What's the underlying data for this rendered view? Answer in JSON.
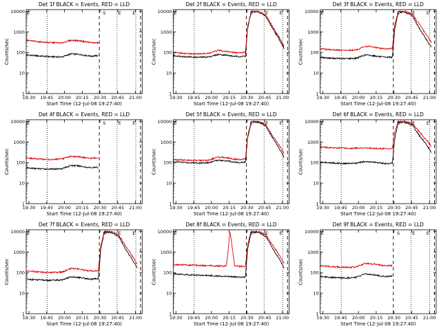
{
  "layout": {
    "rows": 3,
    "cols": 3
  },
  "colors": {
    "events": "#000000",
    "lld": "#dd0000",
    "axes": "#000000",
    "background": "#ffffff"
  },
  "common": {
    "xlabel": "Start Time (12-Jul-08 19:27:40)",
    "ylabel": "Counts/sec",
    "x_tick_labels": [
      "19:30",
      "19:45",
      "20:00",
      "20:15",
      "20:30",
      "20:45",
      "21:00"
    ],
    "x_tick_minutes": [
      2.33,
      17.33,
      32.33,
      47.33,
      62.33,
      77.33,
      92.33
    ],
    "y_tick_labels": [
      "1",
      "10",
      "100",
      "1000",
      "10000"
    ],
    "y_tick_values": [
      1,
      10,
      100,
      1000,
      10000
    ],
    "x_range_minutes": [
      0,
      98
    ],
    "y_range": [
      1,
      12000
    ],
    "y_scale": "log",
    "dotted_lines_minutes": [
      17.8,
      76.8,
      92.6
    ],
    "dashed_lines_minutes": [
      61.8,
      96.6
    ],
    "markers": [
      {
        "label": "E",
        "minute": 1.8
      },
      {
        "label": "S",
        "minute": 66.0
      },
      {
        "label": "E",
        "minute": 79.0
      },
      {
        "label": "E",
        "minute": 91.0
      }
    ]
  },
  "panels": [
    {
      "title": "Det 1f BLACK = Events, RED = LLD"
    },
    {
      "title": "Det 2f BLACK = Events, RED = LLD"
    },
    {
      "title": "Det 3f BLACK = Events, RED = LLD"
    },
    {
      "title": "Det 4f BLACK = Events, RED = LLD"
    },
    {
      "title": "Det 5f BLACK = Events, RED = LLD"
    },
    {
      "title": "Det 6f BLACK = Events, RED = LLD"
    },
    {
      "title": "Det 7f BLACK = Events, RED = LLD"
    },
    {
      "title": "Det 8f BLACK = Events, RED = LLD"
    },
    {
      "title": "Det 9f BLACK = Events, RED = LLD"
    }
  ],
  "chart_data": [
    {
      "type": "line",
      "title": "Det 1f BLACK = Events, RED = LLD",
      "xlabel": "Start Time (12-Jul-08 19:27:40)",
      "ylabel": "Counts/sec",
      "y_scale": "log",
      "ylim": [
        1,
        12000
      ],
      "series": [
        {
          "name": "Events",
          "color": "#000000",
          "x": [
            0,
            10,
            20,
            30,
            38,
            45,
            50,
            55,
            61
          ],
          "y": [
            75,
            68,
            62,
            60,
            85,
            80,
            72,
            66,
            70
          ]
        },
        {
          "name": "LLD",
          "color": "#dd0000",
          "x": [
            0,
            10,
            20,
            30,
            38,
            45,
            50,
            55,
            61
          ],
          "y": [
            390,
            330,
            300,
            290,
            390,
            370,
            330,
            300,
            290
          ]
        }
      ]
    },
    {
      "type": "line",
      "title": "Det 2f BLACK = Events, RED = LLD",
      "xlabel": "Start Time (12-Jul-08 19:27:40)",
      "ylabel": "Counts/sec",
      "y_scale": "log",
      "ylim": [
        1,
        12000
      ],
      "series": [
        {
          "name": "Events",
          "color": "#000000",
          "x": [
            0,
            10,
            20,
            30,
            38,
            45,
            50,
            55,
            61,
            63,
            66,
            72,
            78,
            84,
            90,
            94
          ],
          "y": [
            70,
            62,
            58,
            60,
            80,
            74,
            66,
            63,
            65,
            1500,
            9500,
            9200,
            6000,
            1500,
            400,
            150
          ]
        },
        {
          "name": "LLD",
          "color": "#dd0000",
          "x": [
            0,
            10,
            20,
            30,
            38,
            45,
            50,
            55,
            61,
            63,
            66,
            72,
            78,
            84,
            90,
            94
          ],
          "y": [
            100,
            88,
            85,
            90,
            125,
            115,
            100,
            96,
            100,
            2000,
            10000,
            9800,
            7000,
            1800,
            500,
            180
          ]
        }
      ]
    },
    {
      "type": "line",
      "title": "Det 3f BLACK = Events, RED = LLD",
      "xlabel": "Start Time (12-Jul-08 19:27:40)",
      "ylabel": "Counts/sec",
      "y_scale": "log",
      "ylim": [
        1,
        12000
      ],
      "series": [
        {
          "name": "Events",
          "color": "#000000",
          "x": [
            0,
            10,
            20,
            30,
            38,
            45,
            50,
            55,
            61,
            63,
            66,
            72,
            78,
            84,
            90,
            94
          ],
          "y": [
            58,
            52,
            50,
            52,
            75,
            70,
            62,
            58,
            60,
            1400,
            9000,
            8800,
            6000,
            1400,
            400,
            170
          ]
        },
        {
          "name": "LLD",
          "color": "#dd0000",
          "x": [
            0,
            10,
            20,
            30,
            38,
            45,
            50,
            55,
            61,
            63,
            66,
            72,
            78,
            84,
            90,
            94
          ],
          "y": [
            150,
            135,
            125,
            130,
            200,
            185,
            160,
            150,
            155,
            2200,
            10000,
            9800,
            7200,
            2200,
            700,
            300
          ]
        }
      ]
    },
    {
      "type": "line",
      "title": "Det 4f BLACK = Events, RED = LLD",
      "xlabel": "Start Time (12-Jul-08 19:27:40)",
      "ylabel": "Counts/sec",
      "y_scale": "log",
      "ylim": [
        1,
        12000
      ],
      "series": [
        {
          "name": "Events",
          "color": "#000000",
          "x": [
            0,
            10,
            20,
            30,
            38,
            45,
            50,
            55,
            61
          ],
          "y": [
            55,
            50,
            48,
            50,
            72,
            68,
            60,
            56,
            58
          ]
        },
        {
          "name": "LLD",
          "color": "#dd0000",
          "x": [
            0,
            10,
            20,
            30,
            38,
            45,
            50,
            55,
            61
          ],
          "y": [
            165,
            150,
            140,
            145,
            200,
            190,
            170,
            160,
            165
          ]
        }
      ]
    },
    {
      "type": "line",
      "title": "Det 5f BLACK = Events, RED = LLD",
      "xlabel": "Start Time (12-Jul-08 19:27:40)",
      "ylabel": "Counts/sec",
      "y_scale": "log",
      "ylim": [
        1,
        12000
      ],
      "series": [
        {
          "name": "Events",
          "color": "#000000",
          "x": [
            0,
            10,
            20,
            30,
            38,
            45,
            50,
            55,
            61,
            63,
            66,
            72,
            78,
            84,
            90,
            94
          ],
          "y": [
            110,
            100,
            95,
            98,
            130,
            122,
            108,
            100,
            104,
            1600,
            9600,
            9300,
            6200,
            1600,
            450,
            170
          ]
        },
        {
          "name": "LLD",
          "color": "#dd0000",
          "x": [
            0,
            10,
            20,
            30,
            38,
            45,
            50,
            55,
            61,
            63,
            66,
            72,
            78,
            84,
            90,
            94
          ],
          "y": [
            140,
            130,
            125,
            130,
            185,
            170,
            150,
            140,
            145,
            2100,
            10000,
            9900,
            7000,
            2000,
            650,
            260
          ]
        }
      ]
    },
    {
      "type": "line",
      "title": "Det 6f BLACK = Events, RED = LLD",
      "xlabel": "Start Time (12-Jul-08 19:27:40)",
      "ylabel": "Counts/sec",
      "y_scale": "log",
      "ylim": [
        1,
        12000
      ],
      "series": [
        {
          "name": "Events",
          "color": "#000000",
          "x": [
            0,
            10,
            20,
            30,
            38,
            45,
            50,
            55,
            61,
            63,
            66,
            72,
            78,
            84,
            90,
            94
          ],
          "y": [
            105,
            95,
            90,
            92,
            110,
            104,
            95,
            90,
            92,
            1500,
            9000,
            8800,
            6500,
            2000,
            700,
            300
          ]
        },
        {
          "name": "LLD",
          "color": "#dd0000",
          "x": [
            0,
            10,
            20,
            30,
            38,
            45,
            50,
            55,
            61,
            63,
            66,
            72,
            78,
            84,
            90,
            94
          ],
          "y": [
            560,
            520,
            500,
            500,
            500,
            490,
            480,
            470,
            470,
            3000,
            10000,
            9900,
            7800,
            3000,
            1200,
            600
          ]
        }
      ]
    },
    {
      "type": "line",
      "title": "Det 7f BLACK = Events, RED = LLD",
      "xlabel": "Start Time (12-Jul-08 19:27:40)",
      "ylabel": "Counts/sec",
      "y_scale": "log",
      "ylim": [
        1,
        12000
      ],
      "series": [
        {
          "name": "Events",
          "color": "#000000",
          "x": [
            0,
            10,
            20,
            30,
            38,
            45,
            50,
            55,
            61,
            63,
            66,
            72,
            78,
            84,
            90,
            94
          ],
          "y": [
            48,
            44,
            42,
            44,
            62,
            58,
            52,
            48,
            50,
            1400,
            9000,
            8700,
            5800,
            1400,
            400,
            160
          ]
        },
        {
          "name": "LLD",
          "color": "#dd0000",
          "x": [
            0,
            10,
            20,
            30,
            38,
            45,
            50,
            55,
            61,
            63,
            66,
            72,
            78,
            84,
            90,
            94
          ],
          "y": [
            120,
            108,
            100,
            105,
            160,
            150,
            130,
            120,
            125,
            2000,
            10000,
            9800,
            7000,
            2000,
            600,
            250
          ]
        }
      ]
    },
    {
      "type": "line",
      "title": "Det 8f BLACK = Events, RED = LLD",
      "xlabel": "Start Time (12-Jul-08 19:27:40)",
      "ylabel": "Counts/sec",
      "y_scale": "log",
      "ylim": [
        1,
        12000
      ],
      "series": [
        {
          "name": "Events",
          "color": "#000000",
          "x": [
            0,
            10,
            20,
            30,
            38,
            45,
            48,
            52,
            55,
            61,
            63,
            66,
            72,
            78,
            84,
            90,
            94
          ],
          "y": [
            90,
            80,
            75,
            72,
            68,
            65,
            64,
            62,
            60,
            62,
            1500,
            9200,
            9000,
            6000,
            1500,
            420,
            160
          ]
        },
        {
          "name": "LLD",
          "color": "#dd0000",
          "x": [
            0,
            10,
            20,
            30,
            38,
            45,
            48,
            52,
            55,
            61,
            63,
            66,
            72,
            78,
            84,
            90,
            94
          ],
          "y": [
            250,
            235,
            225,
            215,
            210,
            205,
            10000,
            205,
            200,
            200,
            2500,
            10000,
            9900,
            7200,
            2200,
            650,
            260
          ]
        }
      ]
    },
    {
      "type": "line",
      "title": "Det 9f BLACK = Events, RED = LLD",
      "xlabel": "Start Time (12-Jul-08 19:27:40)",
      "ylabel": "Counts/sec",
      "y_scale": "log",
      "ylim": [
        1,
        12000
      ],
      "series": [
        {
          "name": "Events",
          "color": "#000000",
          "x": [
            0,
            10,
            20,
            30,
            38,
            45,
            50,
            55,
            61
          ],
          "y": [
            65,
            58,
            55,
            58,
            85,
            80,
            70,
            65,
            68
          ]
        },
        {
          "name": "LLD",
          "color": "#dd0000",
          "x": [
            0,
            10,
            20,
            30,
            38,
            45,
            50,
            55,
            61
          ],
          "y": [
            220,
            195,
            180,
            185,
            280,
            265,
            235,
            215,
            220
          ]
        }
      ]
    }
  ]
}
